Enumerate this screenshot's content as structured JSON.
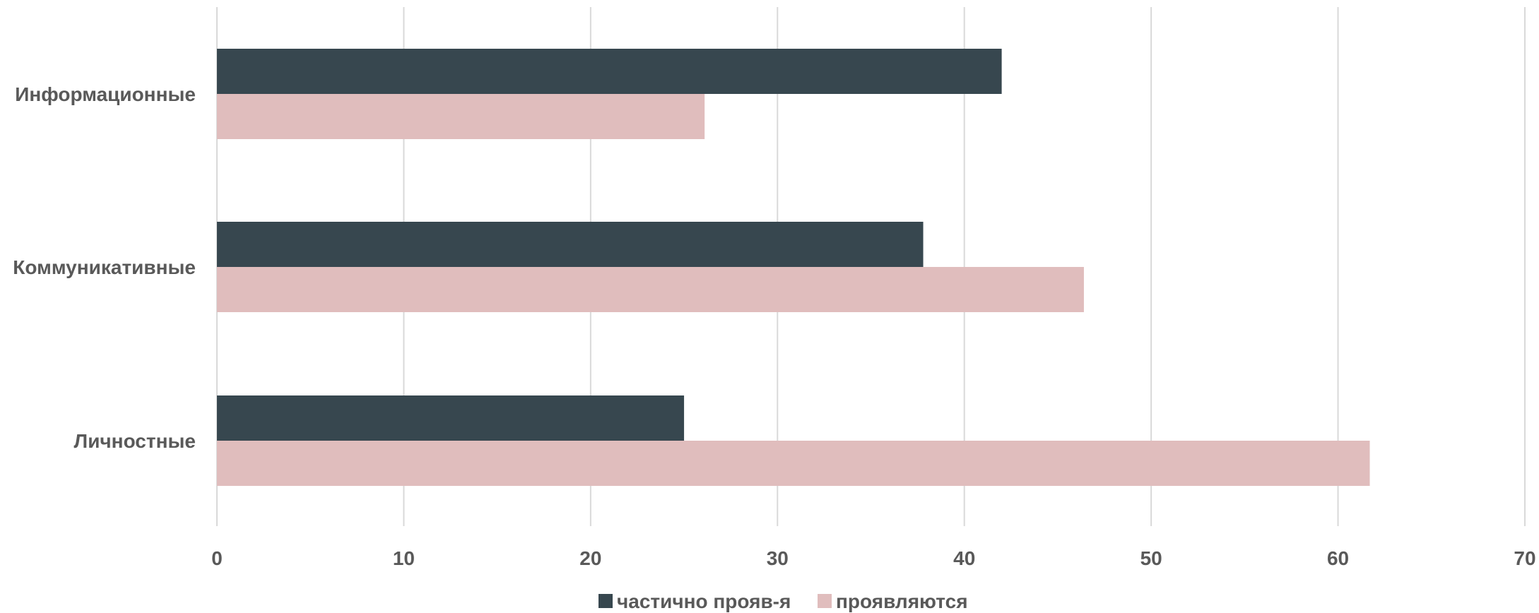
{
  "chart_data": {
    "type": "bar",
    "orientation": "horizontal",
    "categories": [
      "Информационные",
      "Коммуникативные",
      "Личностные"
    ],
    "series": [
      {
        "name": "частично прояв-я",
        "color": "#37474F",
        "values": [
          42,
          37.8,
          25
        ]
      },
      {
        "name": "проявляются",
        "color": "#E0BDBD",
        "values": [
          26.1,
          46.4,
          61.7
        ]
      }
    ],
    "xlim": [
      0,
      70
    ],
    "xticks": [
      0,
      10,
      20,
      30,
      40,
      50,
      60,
      70
    ],
    "grid": true,
    "legend_position": "bottom",
    "title": "",
    "xlabel": "",
    "ylabel": ""
  }
}
